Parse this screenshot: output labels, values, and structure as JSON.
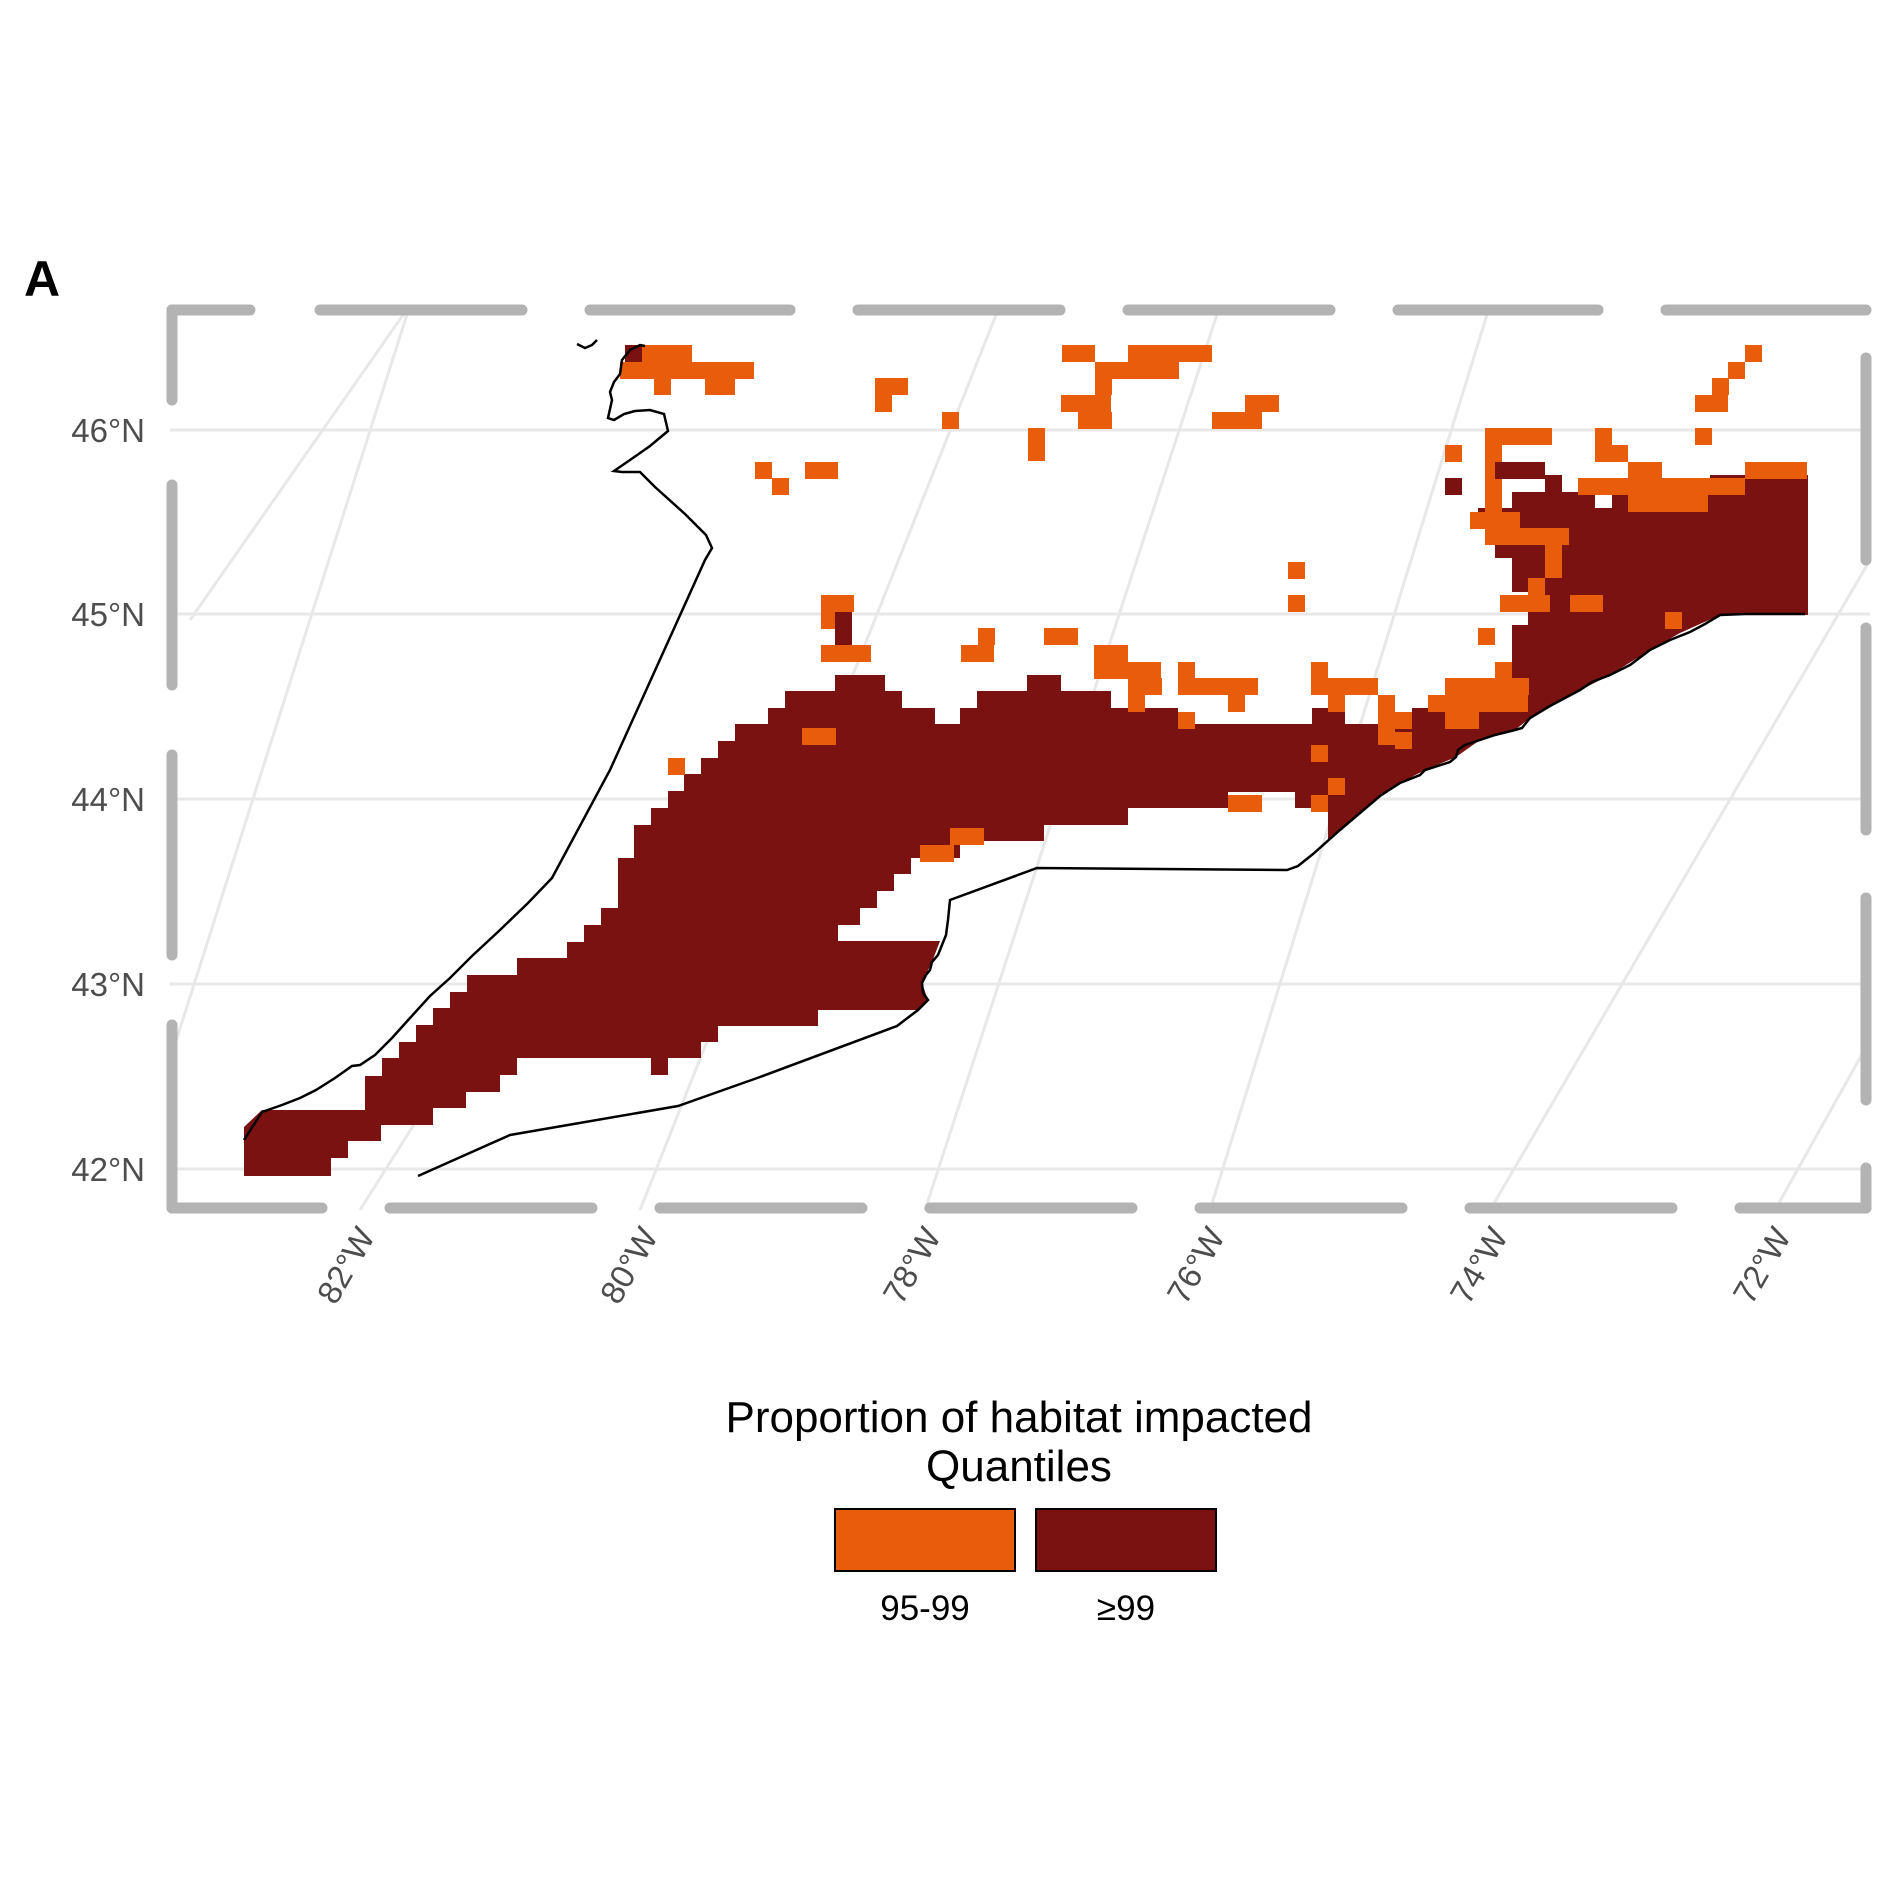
{
  "panel_label": "A",
  "chart_data": {
    "type": "heatmap",
    "title": "",
    "xlabel": "",
    "ylabel": "",
    "lon_ticks": [
      "82°W",
      "80°W",
      "78°W",
      "76°W",
      "74°W",
      "72°W"
    ],
    "lat_ticks": [
      "42°N",
      "43°N",
      "44°N",
      "45°N",
      "46°N"
    ],
    "xlim": [
      -83.1,
      -71.2
    ],
    "ylim": [
      41.9,
      46.6
    ],
    "grid": true,
    "legend": {
      "title_line1": "Proportion of habitat impacted",
      "title_line2": "Quantiles",
      "placement": "bottom",
      "entries": [
        {
          "label": "95-99",
          "color": "#e85d0b"
        },
        {
          "label": "≥99",
          "color": "#7a1212"
        }
      ]
    },
    "cells_lon_lat": {
      "note": "",
      "cell_size_deg": [
        0.117,
        0.117
      ],
      "high": [
        [
          -82.6,
          42.0
        ],
        [
          -82.4,
          42.0
        ],
        [
          -82.2,
          42.1
        ],
        [
          -81.9,
          42.2
        ],
        [
          -81.6,
          42.4
        ],
        [
          -81.3,
          42.6
        ],
        [
          -81.0,
          42.8
        ],
        [
          -80.6,
          42.9
        ],
        [
          -80.2,
          43.0
        ],
        [
          -79.8,
          43.1
        ],
        [
          -79.4,
          43.0
        ],
        [
          -79.0,
          43.1
        ],
        [
          -78.6,
          43.0
        ],
        [
          -78.2,
          43.1
        ],
        [
          -80.0,
          43.3
        ],
        [
          -79.6,
          43.5
        ],
        [
          -79.2,
          43.6
        ],
        [
          -78.8,
          43.7
        ],
        [
          -78.4,
          43.8
        ],
        [
          -78.0,
          43.9
        ],
        [
          -77.6,
          44.0
        ],
        [
          -77.2,
          44.1
        ],
        [
          -76.8,
          44.2
        ],
        [
          -76.4,
          44.2
        ],
        [
          -76.0,
          44.3
        ],
        [
          -75.6,
          44.3
        ],
        [
          -75.2,
          44.4
        ],
        [
          -74.8,
          44.5
        ],
        [
          -74.4,
          44.6
        ],
        [
          -74.0,
          44.7
        ],
        [
          -73.6,
          44.9
        ],
        [
          -73.2,
          45.1
        ],
        [
          -72.8,
          45.3
        ],
        [
          -72.4,
          45.4
        ],
        [
          -72.0,
          45.5
        ],
        [
          -71.6,
          45.6
        ],
        [
          -73.8,
          45.7
        ],
        [
          -73.4,
          45.6
        ],
        [
          -79.6,
          44.3
        ],
        [
          -79.2,
          44.4
        ],
        [
          -78.8,
          44.5
        ],
        [
          -78.4,
          44.6
        ],
        [
          -78.0,
          44.5
        ],
        [
          -77.6,
          44.6
        ],
        [
          -77.2,
          44.5
        ],
        [
          -76.8,
          44.4
        ],
        [
          -76.4,
          44.5
        ],
        [
          -75.9,
          44.4
        ]
      ],
      "mid": [
        [
          -80.2,
          46.4
        ],
        [
          -79.8,
          46.4
        ],
        [
          -79.4,
          46.3
        ],
        [
          -77.4,
          46.4
        ],
        [
          -76.9,
          46.4
        ],
        [
          -76.6,
          46.3
        ],
        [
          -75.8,
          46.2
        ],
        [
          -78.6,
          46.2
        ],
        [
          -79.0,
          45.8
        ],
        [
          -79.3,
          45.7
        ],
        [
          -72.8,
          46.3
        ],
        [
          -73.4,
          45.9
        ],
        [
          -73.9,
          45.8
        ],
        [
          -74.0,
          45.5
        ],
        [
          -73.6,
          45.1
        ],
        [
          -72.6,
          45.7
        ],
        [
          -74.6,
          45.1
        ],
        [
          -79.3,
          44.9
        ],
        [
          -79.2,
          44.6
        ],
        [
          -77.8,
          44.7
        ],
        [
          -77.2,
          44.7
        ],
        [
          -76.7,
          44.6
        ],
        [
          -75.9,
          44.5
        ],
        [
          -75.2,
          44.4
        ],
        [
          -74.6,
          44.5
        ],
        [
          -74.1,
          44.6
        ],
        [
          -73.7,
          44.9
        ],
        [
          -72.9,
          45.0
        ],
        [
          -79.4,
          44.3
        ],
        [
          -80.3,
          44.1
        ],
        [
          -78.2,
          43.6
        ],
        [
          -78.6,
          43.5
        ],
        [
          -76.6,
          44.0
        ],
        [
          -76.2,
          44.0
        ],
        [
          -75.6,
          44.1
        ]
      ]
    }
  }
}
